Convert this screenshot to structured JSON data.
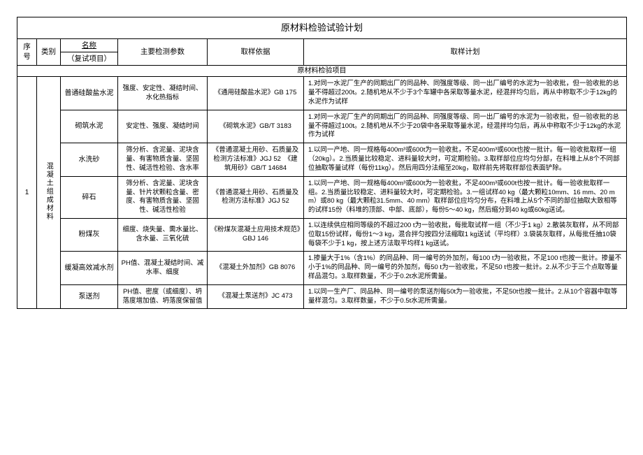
{
  "title": "原材料检验试验计划",
  "header": {
    "seq": "序号",
    "cat": "类别",
    "name_top": "名称",
    "name_bot": "（复试项目）",
    "param": "主要检测参数",
    "basis": "取样依据",
    "plan": "取样计划"
  },
  "section_header": "原材料检验项目",
  "seq_value": "1",
  "cat_value": "混凝土组成材料",
  "rows": [
    {
      "name": "普通硅酸盐水泥",
      "param": "强度、安定性、凝结时间、水化热指标",
      "basis": "《通用硅酸盐水泥》GB 175",
      "plan": "1.对同一水泥厂生产的同期出厂的同品种、同强度等级、同一出厂编号的水泥为一验收批，但一验收批的总量不得超过200t。2.随机地从不少于3个车罐中各采取等量水泥，经混拌均匀后，再从中称取不少于12kg的水泥作为试样"
    },
    {
      "name": "砌筑水泥",
      "param": "安定性、强度、凝结时间",
      "basis": "《砌筑水泥》GB/T 3183",
      "plan": "1.对同一水泥厂生产的同期出厂的同品种、同强度等级、同一出厂编号的水泥为一验收批，但一验收批的总量不得超过100t。2.随机地从不少于20袋中各采取等量水泥，经混拌均匀后，再从中称取不少于12kg的水泥作为试样"
    },
    {
      "name": "水洗砂",
      "param": "筛分析、含泥量、泥块含量、有害物质含量、坚固性、碱活性检验、含水率",
      "basis": "《普通混凝土用砂、石质量及检测方法标准》JGJ 52　《建筑用砂》GB/T 14684",
      "plan": "1.以同一产地、同一规格每400m³或600t为一验收批，不足400m³或600t也按一批计。每一验收批取样一组（20kg）。2.当质量比较稳定、进料量较大时，可定期检验。3.取样部位应均匀分部，在料堆上从8个不同部位抽取等量试样（每份11kg）。然后用四分法缩至20kg，取样前先将取样部位表面铲除。"
    },
    {
      "name": "碎石",
      "param": "筛分析、含泥量、泥块含量、针片状颗粒含量、密度、有害物质含量、坚固性、碱活性检验",
      "basis": "《普通混凝土用砂、石质量及检测方法标准》JGJ 52",
      "plan": "1.以同一产地、同一规格每400m³或600t为一验收批，不足400m³或600t也按一批计。每一验收批取样一组。2.当质量比较稳定、进料量较大时，可定期检验。3.一组试样40 kg（最大颗粒10mm、16 mm、20 mm）或80 kg（最大颗粒31.5mm、40 mm）取样部位应均匀分布，在料堆上从5个不同的部位抽取大致相等的试样15份（料堆的顶部、中部、底部），每份5～40 kg，然后缩分到40 kg或60kg送试。"
    },
    {
      "name": "粉煤灰",
      "param": "细度、烧失量、需水量比、含水量、三氧化硫",
      "basis": "《粉煤灰混凝土应用技术规范》GBJ 146",
      "plan": "1.以连续供应相同等级的不超过200 t为一验收批，每批取试样一组（不少于1 kg）2.散装灰取样，从不同部位取15份试样，每份1～3 kg，混合拌匀按四分法缩取1 kg送试（平均样）3.袋装灰取样，从每批任抽10袋每袋不少于1 kg，按上述方法取平均样1 kg送试。"
    },
    {
      "name": "缓凝高效减水剂",
      "param": "PH值、混凝土凝结时间、减水率、细度",
      "basis": "《混凝土外加剂》GB 8076",
      "plan": "1.掺量大于1%（含1%）的同品种、同一编号的外加剂，每100 t为一验收批，不足100 t也按一批计。掺量不小于1%的同品种、同一编号的外加剂，每50 t为一验收批，不足50 t也按一批计。2.从不少于三个点取等量样品混匀。3.取样数量，不少于0.2t水泥所需量。"
    },
    {
      "name": "泵送剂",
      "param": "PH值、密度（或细度）、坍落度增加值、坍落度保留值",
      "basis": "《混凝土泵送剂》JC 473",
      "plan": "1.以同一生产厂、同品种、同一编号的泵送剂每50t为一验收批，不足50t也按一批计。2.从10个容器中取等量样混匀。3.取样数量，不少于0.5t水泥所需量。"
    }
  ]
}
